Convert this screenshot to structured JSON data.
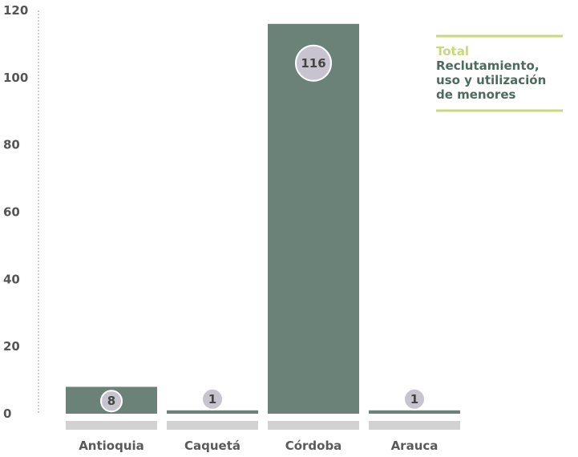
{
  "chart_data": {
    "type": "bar",
    "categories": [
      "Antioquia",
      "Caquetá",
      "Córdoba",
      "Arauca"
    ],
    "values": [
      8,
      1,
      116,
      1
    ],
    "ylim": [
      0,
      120
    ],
    "yticks": [
      0,
      20,
      40,
      60,
      80,
      100,
      120
    ],
    "grid": false,
    "legend_position": "top-right",
    "legend": {
      "total": "Total",
      "label_lines": [
        "Reclutamiento,",
        "uso y utilización",
        "de menores"
      ]
    }
  },
  "colors": {
    "bar": "#6b8279",
    "bar_base": "#d2d2d2",
    "badge_fill": "#c7c4cf",
    "badge_stroke": "#ffffff",
    "legend_accent": "#c8d87a",
    "legend_text": "#4d6a5e",
    "axis_line": "#999999",
    "tick_text": "#555555"
  }
}
